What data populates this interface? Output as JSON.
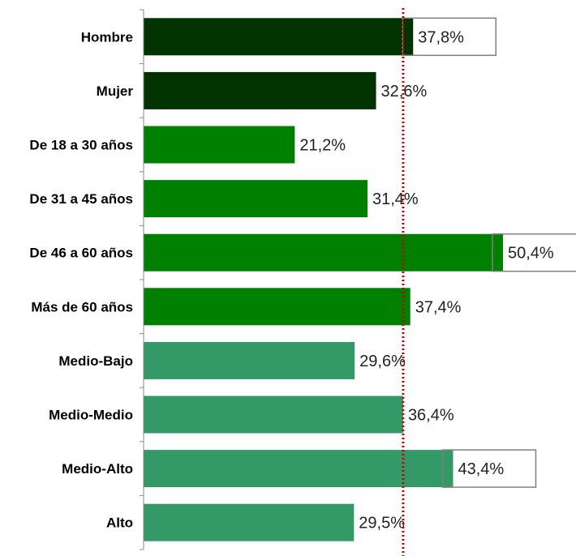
{
  "chart_data": {
    "type": "bar",
    "orientation": "horizontal",
    "categories": [
      "Hombre",
      "Mujer",
      "De 18 a 30 años",
      "De 31 a 45 años",
      "De 46 a 60 años",
      "Más de 60 años",
      "Medio-Bajo",
      "Medio-Medio",
      "Medio-Alto",
      "Alto"
    ],
    "values": [
      37.8,
      32.6,
      21.2,
      31.4,
      50.4,
      37.4,
      29.6,
      36.4,
      43.4,
      29.5
    ],
    "value_labels": [
      "37,8%",
      "32,6%",
      "21,2%",
      "31,4%",
      "50,4%",
      "37,4%",
      "29,6%",
      "36,4%",
      "43,4%",
      "29,5%"
    ],
    "bar_colors": [
      "#003300",
      "#003300",
      "#008000",
      "#008000",
      "#008000",
      "#008000",
      "#339966",
      "#339966",
      "#339966",
      "#339966"
    ],
    "highlighted": [
      true,
      false,
      false,
      false,
      true,
      false,
      false,
      false,
      true,
      false
    ],
    "reference_line": {
      "value": 36.4,
      "style": "dotted",
      "color": "#cc0000"
    },
    "xlim": [
      0,
      52
    ],
    "grid": false,
    "legend": "none",
    "title": "",
    "xlabel": "",
    "ylabel": ""
  }
}
